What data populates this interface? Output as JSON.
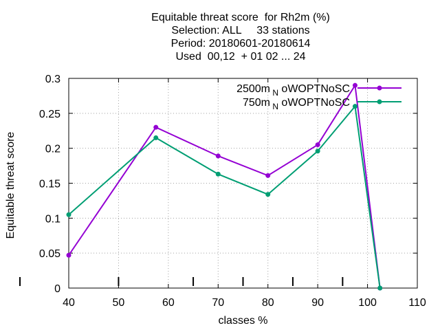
{
  "chart_data": {
    "type": "line",
    "title_lines": [
      "Equitable threat score  for Rh2m (%)",
      "Selection: ALL     33 stations",
      "Period: 20180601-20180614",
      "Used  00,12  + 01 02 ... 24"
    ],
    "xlabel": "classes %",
    "ylabel": "Equitable threat score",
    "xlim": [
      40,
      110
    ],
    "ylim": [
      0,
      0.3
    ],
    "xticks": [
      "40",
      "50",
      "60",
      "70",
      "80",
      "90",
      "100",
      "110"
    ],
    "yticks": [
      "0",
      "0.05",
      "0.1",
      "0.15",
      "0.2",
      "0.25",
      "0.3"
    ],
    "grid": true,
    "legend_position": "top-right",
    "class_markers": [
      40,
      50,
      65,
      75,
      85,
      95
    ],
    "series": [
      {
        "name_main": "2500m",
        "name_sub": "N",
        "name_tail": "oWOPTNoSC",
        "color": "#9400d3",
        "x": [
          40,
          57.5,
          70,
          80,
          90,
          97.5,
          102.5
        ],
        "y": [
          0.047,
          0.23,
          0.189,
          0.161,
          0.205,
          0.29,
          0.0
        ]
      },
      {
        "name_main": "750m",
        "name_sub": "N",
        "name_tail": "oWOPTNoSC",
        "color": "#009e73",
        "x": [
          40,
          57.5,
          70,
          80,
          90,
          97.5,
          102.5
        ],
        "y": [
          0.105,
          0.215,
          0.163,
          0.134,
          0.196,
          0.26,
          0.0
        ]
      }
    ]
  }
}
